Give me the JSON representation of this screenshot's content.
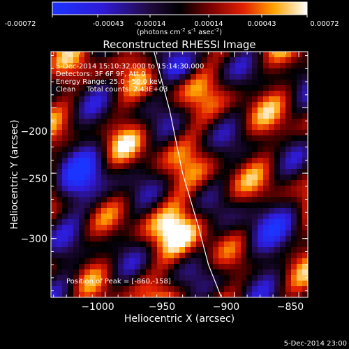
{
  "colorbar": {
    "ticks": [
      "-0.00072",
      "-0.00043",
      "-0.00014",
      "0.00014",
      "0.00043",
      "0.00072"
    ],
    "units_prefix": "(photons cm",
    "units_sup1": "-2",
    "units_mid1": " s",
    "units_sup2": "-1",
    "units_mid2": " asec",
    "units_sup3": "-2",
    "units_suffix": ")"
  },
  "plot": {
    "title": "Reconstructed RHESSI Image",
    "xlabel": "Heliocentric X (arcsec)",
    "ylabel": "Heliocentric Y (arcsec)",
    "xticks": [
      {
        "label": "−1000",
        "value": -1000
      },
      {
        "label": "−950",
        "value": -950
      },
      {
        "label": "−900",
        "value": -900
      },
      {
        "label": "−850",
        "value": -850
      }
    ],
    "yticks": [
      {
        "label": "−200",
        "value": -200
      },
      {
        "label": "−250",
        "value": -250
      },
      {
        "label": "−300",
        "value": -300
      }
    ]
  },
  "annotations": {
    "line1": "5-Dec-2014 15:10:32.000 to 15:14:30.000",
    "line2": "Detectors: 3F 6F 9F, Att 0",
    "line3": "Energy Range: 25.0 - 50.0 keV",
    "line4": "Clean     Total counts: 2.43E+03",
    "peak": "Position of Peak = [-860,-158]"
  },
  "footer": {
    "timestamp": "5-Dec-2014 23:00"
  },
  "chart_data": {
    "type": "heatmap",
    "title": "Reconstructed RHESSI Image",
    "xlabel": "Heliocentric X (arcsec)",
    "ylabel": "Heliocentric Y (arcsec)",
    "xlim": [
      -1042,
      -843
    ],
    "ylim": [
      -345,
      -157
    ],
    "color_range": [
      -0.00072,
      0.00072
    ],
    "peak_position": [
      -860,
      -158
    ],
    "limb_curve": {
      "x": [
        -964,
        -950,
        -940,
        -928,
        -920,
        -910
      ],
      "y": [
        -150,
        -202,
        -250,
        -290,
        -320,
        -345
      ]
    }
  }
}
